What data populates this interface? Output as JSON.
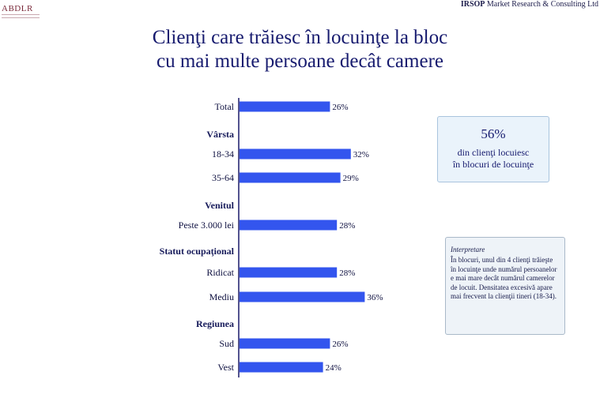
{
  "header": {
    "logo_text": "ABDLR",
    "company_bold": "IRSOP",
    "company_rest": " Market Research & Consulting Ltd"
  },
  "title_line1": "Clienţi care trăiesc în locuinţe la bloc",
  "title_line2": "cu mai multe persoane decât camere",
  "colors": {
    "bar": "#3355ee",
    "axis": "#1a1a6a",
    "title": "#161a6e"
  },
  "chart_data": {
    "type": "bar",
    "orientation": "horizontal",
    "unit": "%",
    "xlim": [
      0,
      100
    ],
    "groups": [
      "Vârsta",
      "Venitul",
      "Statut ocupaţional",
      "Regiunea"
    ],
    "categories": [
      "Total",
      "18-34",
      "35-64",
      "Peste 3.000 lei",
      "Ridicat",
      "Mediu",
      "Sud",
      "Vest"
    ],
    "values": [
      26,
      32,
      29,
      28,
      28,
      36,
      26,
      24
    ],
    "value_labels": [
      "26%",
      "32%",
      "29%",
      "28%",
      "28%",
      "36%",
      "26%",
      "24%"
    ]
  },
  "highlight": {
    "value": "56%",
    "line1": "din clienţi locuiesc",
    "line2": "în blocuri de locuinţe"
  },
  "interpretation": {
    "heading": "Interpretare",
    "text": "În blocuri, unul din 4 clienţi trăieşte în locuinţe unde numărul persoanelor e mai mare decât numărul camerelor de locuit. Densitatea excesivă apare mai frecvent la clienţii tineri (18-34)."
  }
}
